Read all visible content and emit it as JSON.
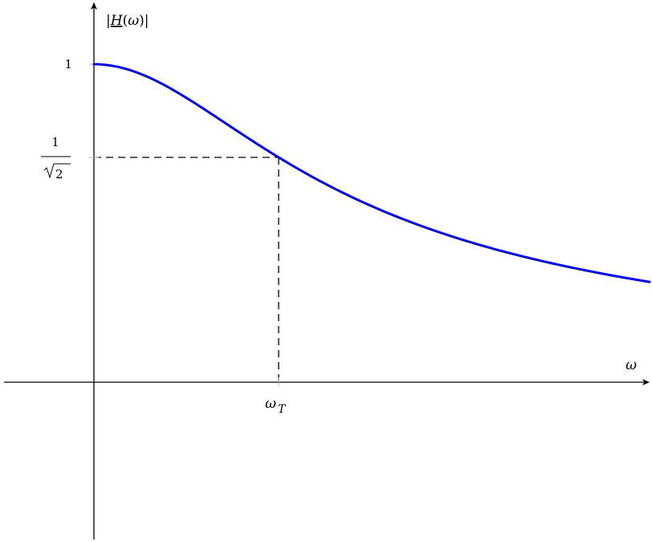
{
  "chart_data": {
    "type": "line",
    "title": "",
    "xlabel": "ω",
    "ylabel": "|H(ω)|",
    "xlim": [
      -1,
      5
    ],
    "ylim": [
      -1.7,
      1.7
    ],
    "grid": false,
    "series": [
      {
        "function": "|H(ω)| = 1 / sqrt(1 + (ω/ω_T)^2)",
        "x": [
          0,
          0.25,
          0.5,
          0.75,
          1,
          1.25,
          1.5,
          1.75,
          2,
          2.25,
          2.5,
          2.75,
          3
        ],
        "values": [
          1,
          0.97,
          0.894,
          0.8,
          0.707,
          0.625,
          0.555,
          0.496,
          0.447,
          0.406,
          0.371,
          0.342,
          0.316
        ],
        "color": "#0000e6"
      }
    ],
    "x_ticks": [
      {
        "value": 1,
        "label": "ω_T"
      }
    ],
    "y_ticks": [
      {
        "value": 1,
        "label": "1"
      },
      {
        "value": 0.7071,
        "label": "1/√2"
      }
    ],
    "guides": [
      {
        "type": "dashed",
        "at": [
          1,
          0.7071
        ]
      }
    ]
  }
}
